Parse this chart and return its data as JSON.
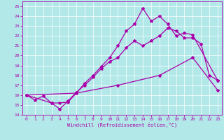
{
  "xlabel": "Windchill (Refroidissement éolien,°C)",
  "bg_color": "#b2e8e8",
  "line_color": "#aa00aa",
  "grid_color": "#ffffff",
  "xlim": [
    -0.5,
    23.5
  ],
  "ylim": [
    14,
    25.5
  ],
  "yticks": [
    14,
    15,
    16,
    17,
    18,
    19,
    20,
    21,
    22,
    23,
    24,
    25
  ],
  "xticks": [
    0,
    1,
    2,
    3,
    4,
    5,
    6,
    7,
    8,
    9,
    10,
    11,
    12,
    13,
    14,
    15,
    16,
    17,
    18,
    19,
    20,
    21,
    22,
    23
  ],
  "line1_x": [
    0,
    1,
    2,
    3,
    4,
    5,
    6,
    7,
    8,
    9,
    10,
    11,
    12,
    13,
    14,
    15,
    16,
    17,
    18,
    19,
    20,
    21,
    22,
    23
  ],
  "line1_y": [
    16.0,
    15.5,
    15.9,
    15.2,
    14.6,
    15.4,
    16.3,
    17.0,
    17.8,
    18.7,
    19.4,
    19.8,
    20.8,
    21.5,
    21.0,
    21.5,
    22.0,
    22.8,
    22.5,
    21.8,
    21.8,
    21.2,
    18.0,
    17.5
  ],
  "line2_x": [
    0,
    3,
    4,
    5,
    6,
    7,
    8,
    9,
    10,
    11,
    12,
    13,
    14,
    15,
    16,
    17,
    18,
    19,
    20,
    23
  ],
  "line2_y": [
    16.0,
    15.2,
    15.2,
    15.3,
    16.2,
    17.2,
    18.0,
    18.9,
    19.8,
    21.0,
    22.5,
    23.2,
    24.8,
    23.5,
    24.0,
    23.2,
    22.0,
    22.3,
    22.1,
    17.5
  ],
  "line3_x": [
    0,
    6,
    11,
    16,
    20,
    23
  ],
  "line3_y": [
    16.0,
    16.2,
    17.0,
    18.0,
    19.8,
    16.5
  ]
}
